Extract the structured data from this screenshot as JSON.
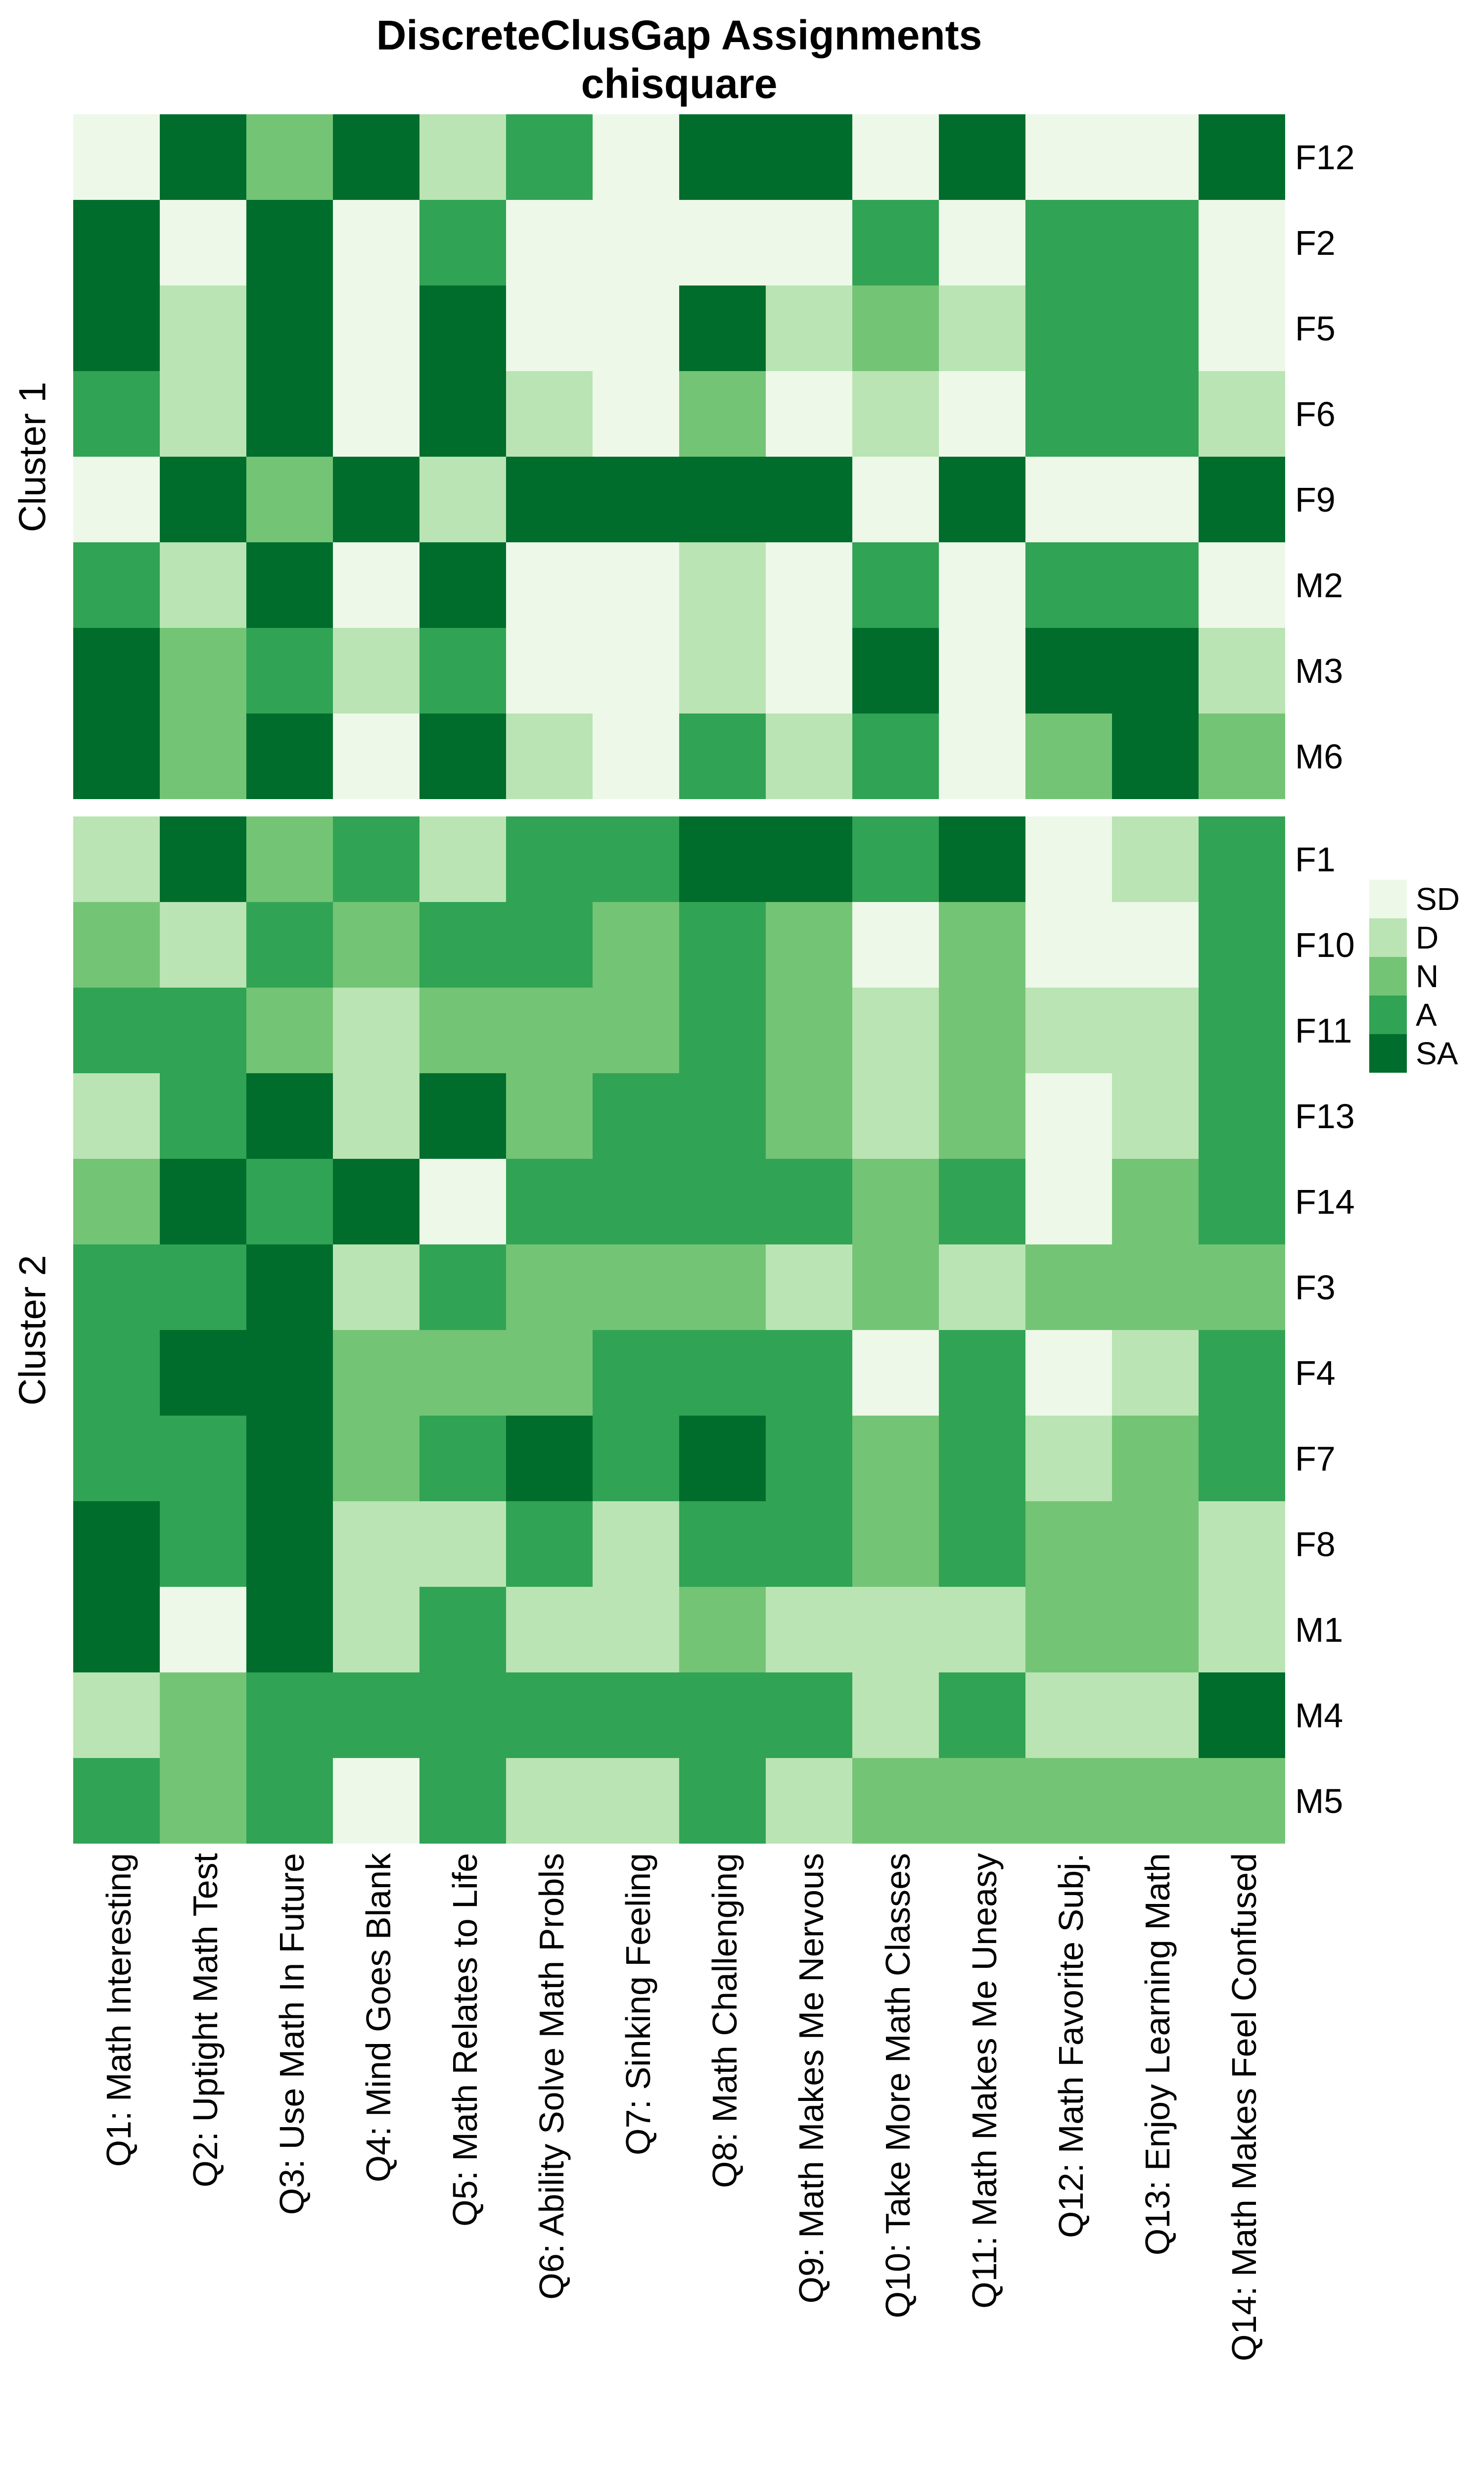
{
  "title": {
    "line1": "DiscreteClusGap Assignments",
    "line2": "chisquare"
  },
  "legend": {
    "entries": [
      {
        "label": "SD",
        "color": "#EDF8E9"
      },
      {
        "label": "D",
        "color": "#BAE4B3"
      },
      {
        "label": "N",
        "color": "#74C476"
      },
      {
        "label": "A",
        "color": "#31A354"
      },
      {
        "label": "SA",
        "color": "#006D2C"
      }
    ]
  },
  "chart_data": {
    "type": "heatmap",
    "title": "DiscreteClusGap Assignments chisquare",
    "value_scale": [
      "SD",
      "D",
      "N",
      "A",
      "SA"
    ],
    "colors": {
      "SD": "#EDF8E9",
      "D": "#BAE4B3",
      "N": "#74C476",
      "A": "#31A354",
      "SA": "#006D2C"
    },
    "x_categories": [
      "Q1: Math Interesting",
      "Q2: Uptight Math Test",
      "Q3: Use Math In Future",
      "Q4: Mind Goes Blank",
      "Q5: Math Relates to Life",
      "Q6: Ability Solve Math Probls",
      "Q7: Sinking Feeling",
      "Q8: Math Challenging",
      "Q9: Math Makes Me Nervous",
      "Q10: Take More Math Classes",
      "Q11: Math Makes Me Uneasy",
      "Q12: Math Favorite Subj.",
      "Q13: Enjoy Learning Math",
      "Q14: Math Makes Feel Confused"
    ],
    "facets": [
      {
        "name": "Cluster 1",
        "rows": [
          "F12",
          "F2",
          "F5",
          "F6",
          "F9",
          "M2",
          "M3",
          "M6"
        ],
        "values": [
          [
            "SD",
            "SA",
            "N",
            "SA",
            "D",
            "A",
            "SD",
            "SA",
            "SA",
            "SD",
            "SA",
            "SD",
            "SD",
            "SA"
          ],
          [
            "SA",
            "SD",
            "SA",
            "SD",
            "A",
            "SD",
            "SD",
            "SD",
            "SD",
            "A",
            "SD",
            "A",
            "A",
            "SD"
          ],
          [
            "SA",
            "D",
            "SA",
            "SD",
            "SA",
            "SD",
            "SD",
            "SA",
            "D",
            "N",
            "D",
            "A",
            "A",
            "SD"
          ],
          [
            "A",
            "D",
            "SA",
            "SD",
            "SA",
            "D",
            "SD",
            "N",
            "SD",
            "D",
            "SD",
            "A",
            "A",
            "D"
          ],
          [
            "SD",
            "SA",
            "N",
            "SA",
            "D",
            "SA",
            "SA",
            "SA",
            "SA",
            "SD",
            "SA",
            "SD",
            "SD",
            "SA"
          ],
          [
            "A",
            "D",
            "SA",
            "SD",
            "SA",
            "SD",
            "SD",
            "D",
            "SD",
            "A",
            "SD",
            "A",
            "A",
            "SD"
          ],
          [
            "SA",
            "N",
            "A",
            "D",
            "A",
            "SD",
            "SD",
            "D",
            "SD",
            "SA",
            "SD",
            "SA",
            "SA",
            "D"
          ],
          [
            "SA",
            "N",
            "SA",
            "SD",
            "SA",
            "D",
            "SD",
            "A",
            "D",
            "A",
            "SD",
            "N",
            "SA",
            "N"
          ]
        ]
      },
      {
        "name": "Cluster 2",
        "rows": [
          "F1",
          "F10",
          "F11",
          "F13",
          "F14",
          "F3",
          "F4",
          "F7",
          "F8",
          "M1",
          "M4",
          "M5"
        ],
        "values": [
          [
            "D",
            "SA",
            "N",
            "A",
            "D",
            "A",
            "A",
            "SA",
            "SA",
            "A",
            "SA",
            "SD",
            "D",
            "A"
          ],
          [
            "N",
            "D",
            "A",
            "N",
            "A",
            "A",
            "N",
            "A",
            "N",
            "SD",
            "N",
            "SD",
            "SD",
            "A"
          ],
          [
            "A",
            "A",
            "N",
            "D",
            "N",
            "N",
            "N",
            "A",
            "N",
            "D",
            "N",
            "D",
            "D",
            "A"
          ],
          [
            "D",
            "A",
            "SA",
            "D",
            "SA",
            "N",
            "A",
            "A",
            "N",
            "D",
            "N",
            "SD",
            "D",
            "A"
          ],
          [
            "N",
            "SA",
            "A",
            "SA",
            "SD",
            "A",
            "A",
            "A",
            "A",
            "N",
            "A",
            "SD",
            "N",
            "A"
          ],
          [
            "A",
            "A",
            "SA",
            "D",
            "A",
            "N",
            "N",
            "N",
            "D",
            "N",
            "D",
            "N",
            "N",
            "N"
          ],
          [
            "A",
            "SA",
            "SA",
            "N",
            "N",
            "N",
            "A",
            "A",
            "A",
            "SD",
            "A",
            "SD",
            "D",
            "A"
          ],
          [
            "A",
            "A",
            "SA",
            "N",
            "A",
            "SA",
            "A",
            "SA",
            "A",
            "N",
            "A",
            "D",
            "N",
            "A"
          ],
          [
            "SA",
            "A",
            "SA",
            "D",
            "D",
            "A",
            "D",
            "A",
            "A",
            "N",
            "A",
            "N",
            "N",
            "D"
          ],
          [
            "SA",
            "SD",
            "SA",
            "D",
            "A",
            "D",
            "D",
            "N",
            "D",
            "D",
            "D",
            "N",
            "N",
            "D"
          ],
          [
            "D",
            "N",
            "A",
            "A",
            "A",
            "A",
            "A",
            "A",
            "A",
            "D",
            "A",
            "D",
            "D",
            "SA"
          ],
          [
            "A",
            "N",
            "A",
            "SD",
            "A",
            "D",
            "D",
            "A",
            "D",
            "N",
            "N",
            "N",
            "N",
            "N"
          ]
        ]
      }
    ]
  }
}
